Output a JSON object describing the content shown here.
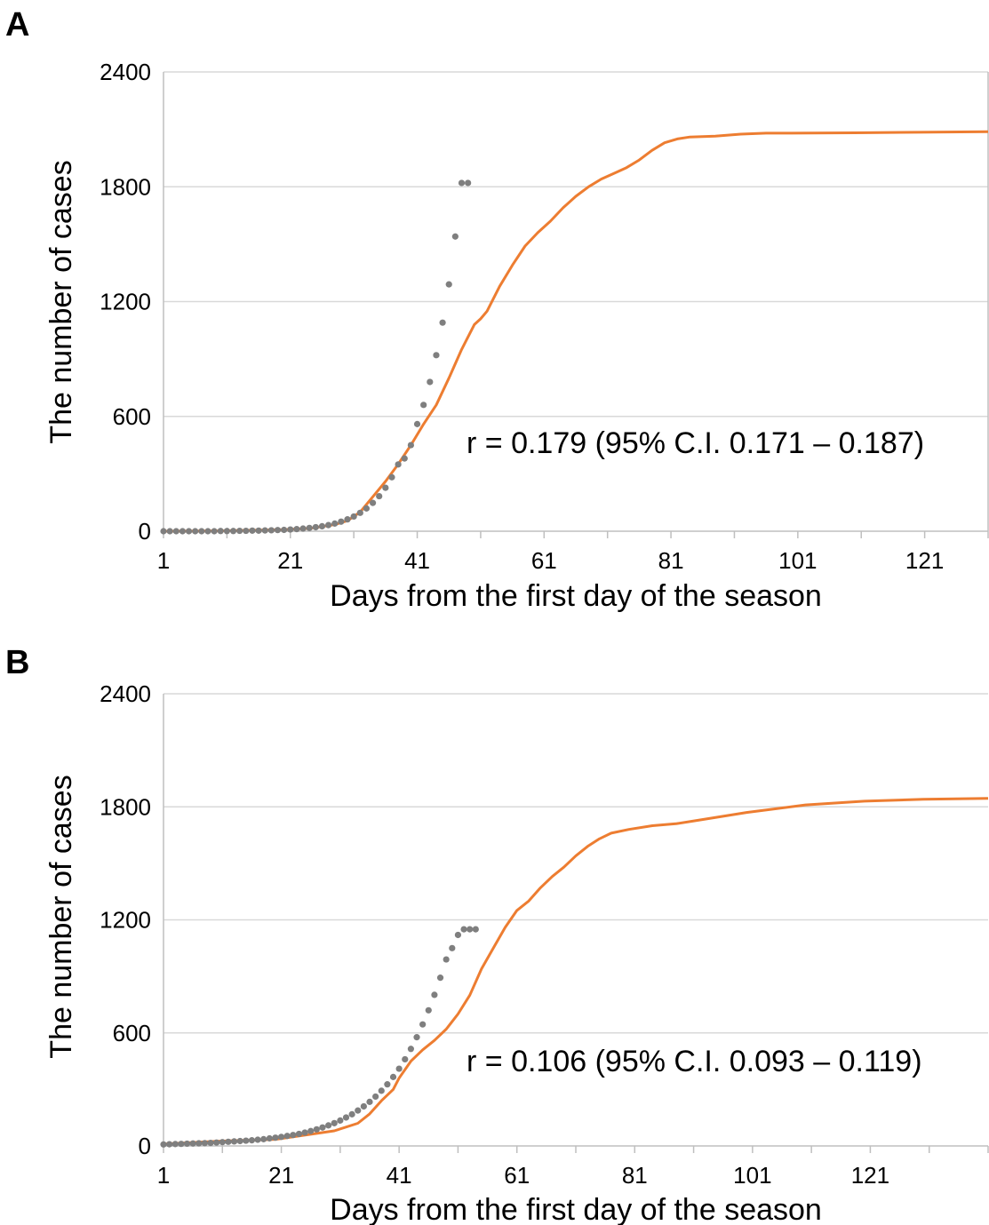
{
  "colors": {
    "observed_line": "#ED7D31",
    "fitted_points": "#7F7F7F",
    "gridline": "#D9D9D9",
    "axis": "#BFBFBF",
    "text": "#000000"
  },
  "chart_data": [
    {
      "panel_label": "A",
      "type": "line",
      "xlabel": "Days from the first day of the season",
      "ylabel": "The number of cases",
      "xlim": [
        1,
        131
      ],
      "ylim": [
        0,
        2400
      ],
      "x_ticks": [
        1,
        21,
        41,
        61,
        81,
        101,
        121
      ],
      "y_ticks": [
        0,
        600,
        1200,
        1800,
        2400
      ],
      "grid": "horizontal",
      "annotation": "r = 0.179 (95% C.I. 0.171 – 0.187)",
      "series": [
        {
          "style": "line",
          "points": [
            [
              1,
              0
            ],
            [
              10,
              2
            ],
            [
              20,
              8
            ],
            [
              24,
              15
            ],
            [
              28,
              35
            ],
            [
              30,
              55
            ],
            [
              32,
              100
            ],
            [
              34,
              180
            ],
            [
              36,
              260
            ],
            [
              38,
              350
            ],
            [
              40,
              450
            ],
            [
              42,
              560
            ],
            [
              44,
              660
            ],
            [
              46,
              800
            ],
            [
              48,
              950
            ],
            [
              50,
              1080
            ],
            [
              51,
              1110
            ],
            [
              52,
              1150
            ],
            [
              54,
              1280
            ],
            [
              56,
              1390
            ],
            [
              58,
              1490
            ],
            [
              60,
              1560
            ],
            [
              62,
              1620
            ],
            [
              64,
              1690
            ],
            [
              66,
              1750
            ],
            [
              68,
              1800
            ],
            [
              70,
              1840
            ],
            [
              72,
              1870
            ],
            [
              74,
              1900
            ],
            [
              76,
              1940
            ],
            [
              78,
              1990
            ],
            [
              80,
              2030
            ],
            [
              82,
              2050
            ],
            [
              84,
              2060
            ],
            [
              88,
              2065
            ],
            [
              92,
              2075
            ],
            [
              96,
              2080
            ],
            [
              100,
              2080
            ],
            [
              110,
              2082
            ],
            [
              120,
              2085
            ],
            [
              131,
              2088
            ]
          ]
        },
        {
          "style": "points",
          "x": [
            1,
            2,
            3,
            4,
            5,
            6,
            7,
            8,
            9,
            10,
            11,
            12,
            13,
            14,
            15,
            16,
            17,
            18,
            19,
            20,
            21,
            22,
            23,
            24,
            25,
            26,
            27,
            28,
            29,
            30,
            31,
            32,
            33,
            34,
            35,
            36,
            37,
            38,
            39,
            40,
            41,
            42,
            43,
            44,
            45,
            46,
            47,
            48,
            49
          ],
          "y": [
            0,
            0,
            0,
            0,
            0,
            0,
            0,
            0,
            0,
            1,
            1,
            1,
            2,
            2,
            3,
            3,
            4,
            5,
            6,
            7,
            9,
            11,
            14,
            17,
            21,
            26,
            32,
            40,
            50,
            62,
            77,
            96,
            119,
            148,
            183,
            227,
            282,
            349,
            380,
            450,
            560,
            660,
            780,
            920,
            1090,
            1290,
            1540,
            1820,
            1820
          ]
        }
      ]
    },
    {
      "panel_label": "B",
      "type": "line",
      "xlabel": "Days from the first day of the season",
      "ylabel": "The number of cases",
      "xlim": [
        1,
        141
      ],
      "ylim": [
        0,
        2400
      ],
      "x_ticks": [
        1,
        21,
        41,
        61,
        81,
        101,
        121
      ],
      "y_ticks": [
        0,
        600,
        1200,
        1800,
        2400
      ],
      "grid": "horizontal",
      "annotation": "r = 0.106 (95% C.I. 0.093 – 0.119)",
      "series": [
        {
          "style": "line",
          "points": [
            [
              1,
              10
            ],
            [
              10,
              25
            ],
            [
              20,
              35
            ],
            [
              30,
              80
            ],
            [
              34,
              120
            ],
            [
              36,
              170
            ],
            [
              38,
              240
            ],
            [
              40,
              300
            ],
            [
              41,
              360
            ],
            [
              43,
              450
            ],
            [
              45,
              510
            ],
            [
              47,
              560
            ],
            [
              49,
              620
            ],
            [
              51,
              700
            ],
            [
              53,
              800
            ],
            [
              55,
              940
            ],
            [
              57,
              1050
            ],
            [
              59,
              1160
            ],
            [
              61,
              1250
            ],
            [
              63,
              1300
            ],
            [
              65,
              1370
            ],
            [
              67,
              1430
            ],
            [
              69,
              1480
            ],
            [
              71,
              1540
            ],
            [
              73,
              1590
            ],
            [
              75,
              1630
            ],
            [
              77,
              1660
            ],
            [
              80,
              1680
            ],
            [
              84,
              1700
            ],
            [
              88,
              1710
            ],
            [
              92,
              1730
            ],
            [
              96,
              1750
            ],
            [
              100,
              1770
            ],
            [
              105,
              1790
            ],
            [
              110,
              1810
            ],
            [
              115,
              1820
            ],
            [
              120,
              1830
            ],
            [
              130,
              1840
            ],
            [
              141,
              1845
            ]
          ]
        },
        {
          "style": "points",
          "x": [
            1,
            2,
            3,
            4,
            5,
            6,
            7,
            8,
            9,
            10,
            11,
            12,
            13,
            14,
            15,
            16,
            17,
            18,
            19,
            20,
            21,
            22,
            23,
            24,
            25,
            26,
            27,
            28,
            29,
            30,
            31,
            32,
            33,
            34,
            35,
            36,
            37,
            38,
            39,
            40,
            41,
            42,
            43,
            44,
            45,
            46,
            47,
            48,
            49,
            50,
            51,
            52,
            53,
            54
          ],
          "y": [
            8,
            9,
            10,
            11,
            12,
            13,
            14,
            15,
            16,
            18,
            20,
            22,
            24,
            26,
            28,
            30,
            33,
            36,
            40,
            44,
            48,
            53,
            58,
            64,
            71,
            79,
            88,
            98,
            109,
            121,
            135,
            151,
            168,
            188,
            210,
            234,
            262,
            293,
            327,
            366,
            410,
            460,
            515,
            577,
            645,
            720,
            802,
            893,
            990,
            1050,
            1120,
            1150,
            1150,
            1150
          ]
        }
      ]
    }
  ]
}
